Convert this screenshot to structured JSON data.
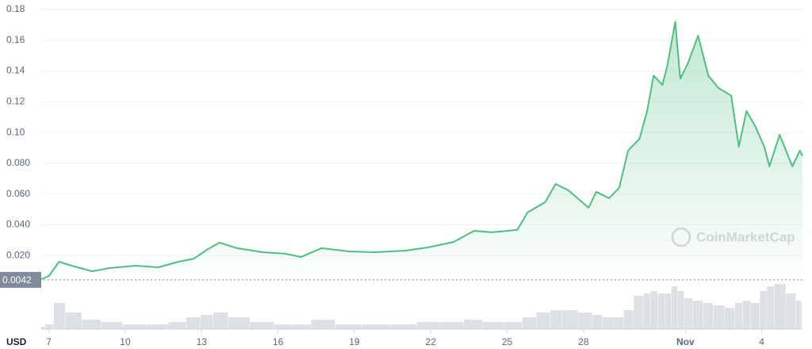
{
  "chart_data": {
    "type": "line",
    "currency": "USD",
    "watermark": "CoinMarketCap",
    "color": "#4fbf7f",
    "volume_color": "#d5d9e0",
    "grid": true,
    "reference": {
      "value": 0.0042,
      "label": "0.0042"
    },
    "x": [
      -0.3,
      0,
      0.4,
      0.9,
      1.7,
      2.4,
      3.4,
      4.3,
      5.1,
      5.7,
      6.2,
      6.7,
      7.4,
      8.4,
      9.3,
      9.9,
      10.7,
      11.8,
      12.8,
      14,
      14.9,
      15.9,
      16.7,
      17.4,
      18.4,
      18.8,
      19.5,
      19.9,
      20.4,
      21.2,
      21.5,
      22,
      22.4,
      22.75,
      23.2,
      23.5,
      23.75,
      24.1,
      24.3,
      24.6,
      24.8,
      25.1,
      25.5,
      25.9,
      26.3,
      26.8,
      27.1,
      27.4,
      27.75,
      28.1,
      28.3,
      28.7,
      29.2,
      29.5,
      29.6
    ],
    "values": [
      0.0046,
      0.0067,
      0.016,
      0.0134,
      0.0098,
      0.0119,
      0.0134,
      0.0124,
      0.016,
      0.018,
      0.0237,
      0.0284,
      0.0248,
      0.0222,
      0.0212,
      0.0191,
      0.0248,
      0.0227,
      0.0222,
      0.0232,
      0.0253,
      0.0289,
      0.0361,
      0.0351,
      0.0367,
      0.048,
      0.0548,
      0.0666,
      0.0625,
      0.0511,
      0.0615,
      0.0573,
      0.064,
      0.0883,
      0.096,
      0.114,
      0.137,
      0.131,
      0.144,
      0.172,
      0.135,
      0.145,
      0.163,
      0.137,
      0.129,
      0.124,
      0.0908,
      0.114,
      0.104,
      0.0908,
      0.078,
      0.0986,
      0.078,
      0.0883,
      0.0847
    ],
    "volume": [
      5,
      10,
      55,
      35,
      20,
      15,
      10,
      10,
      15,
      25,
      30,
      35,
      25,
      15,
      10,
      10,
      20,
      10,
      10,
      10,
      15,
      15,
      20,
      15,
      15,
      25,
      35,
      40,
      40,
      35,
      30,
      25,
      25,
      40,
      70,
      75,
      80,
      75,
      75,
      90,
      80,
      65,
      60,
      55,
      50,
      45,
      55,
      60,
      55,
      80,
      90,
      95,
      75,
      60,
      55
    ],
    "vlim": [
      0,
      100
    ],
    "xlim": [
      -0.3,
      29.6
    ],
    "xticks": [
      {
        "value": 0,
        "label": "7"
      },
      {
        "value": 3,
        "label": "10"
      },
      {
        "value": 6,
        "label": "13"
      },
      {
        "value": 9,
        "label": "16"
      },
      {
        "value": 12,
        "label": "19"
      },
      {
        "value": 15,
        "label": "22"
      },
      {
        "value": 18,
        "label": "25"
      },
      {
        "value": 21,
        "label": "28"
      },
      {
        "value": 25,
        "label": "Nov"
      },
      {
        "value": 28,
        "label": "4"
      }
    ],
    "ylim": [
      0,
      0.18
    ],
    "yticks": [
      {
        "value": 0.02,
        "label": "0.020"
      },
      {
        "value": 0.04,
        "label": "0.040"
      },
      {
        "value": 0.06,
        "label": "0.060"
      },
      {
        "value": 0.08,
        "label": "0.080"
      },
      {
        "value": 0.1,
        "label": "0.10"
      },
      0.12,
      0.14,
      0.16,
      0.18
    ]
  }
}
